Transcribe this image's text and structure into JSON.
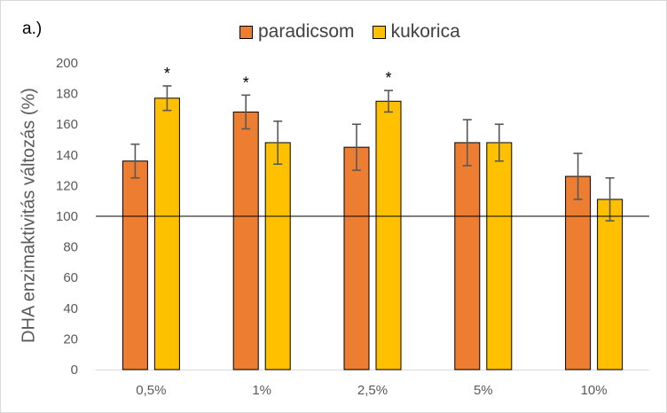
{
  "chart_data": {
    "type": "bar",
    "panel_label": "a.)",
    "title": "",
    "xlabel": "",
    "ylabel": "DHA enzimaktivitás változás (%)",
    "ylim": [
      0,
      200
    ],
    "yticks": [
      0,
      20,
      40,
      60,
      80,
      100,
      120,
      140,
      160,
      180,
      200
    ],
    "categories": [
      "0,5%",
      "1%",
      "2,5%",
      "5%",
      "10%"
    ],
    "series": [
      {
        "name": "paradicsom",
        "color": "#ED7D31",
        "values": [
          136,
          168,
          145,
          148,
          126
        ],
        "errors": [
          11,
          11,
          15,
          15,
          15
        ],
        "significance": [
          "",
          "*",
          "",
          "",
          ""
        ]
      },
      {
        "name": "kukorica",
        "color": "#FFC000",
        "values": [
          177,
          148,
          175,
          148,
          111
        ],
        "errors": [
          8,
          14,
          7,
          12,
          14
        ],
        "significance": [
          "*",
          "",
          "*",
          "",
          ""
        ]
      }
    ],
    "reference_line": 100,
    "grid": false,
    "legend_position": "top"
  }
}
